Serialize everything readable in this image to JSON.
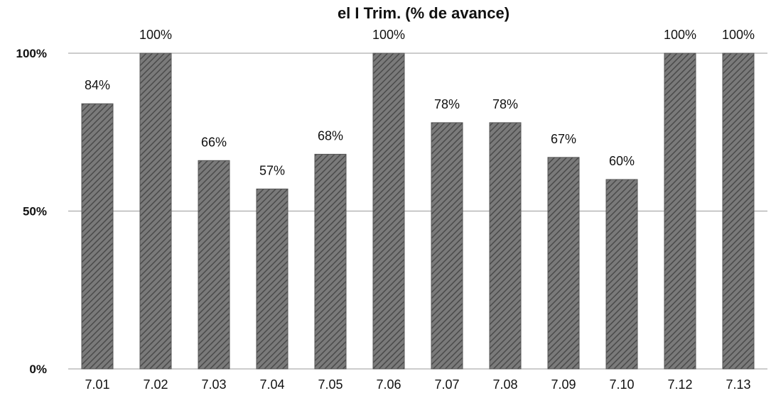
{
  "chart_data": {
    "type": "bar",
    "title": "el I Trim.  (% de avance)",
    "categories": [
      "7.01",
      "7.02",
      "7.03",
      "7.04",
      "7.05",
      "7.06",
      "7.07",
      "7.08",
      "7.09",
      "7.10",
      "7.12",
      "7.13"
    ],
    "values": [
      84,
      100,
      66,
      57,
      68,
      100,
      78,
      78,
      67,
      60,
      100,
      100
    ],
    "data_labels": [
      "84%",
      "100%",
      "66%",
      "57%",
      "68%",
      "100%",
      "78%",
      "78%",
      "67%",
      "60%",
      "100%",
      "100%"
    ],
    "ylim": [
      0,
      100
    ],
    "yticks": [
      0,
      50,
      100
    ],
    "ytick_labels": [
      "0%",
      "50%",
      "100%"
    ],
    "grid": true,
    "bar_color": "#6b6b6b"
  }
}
